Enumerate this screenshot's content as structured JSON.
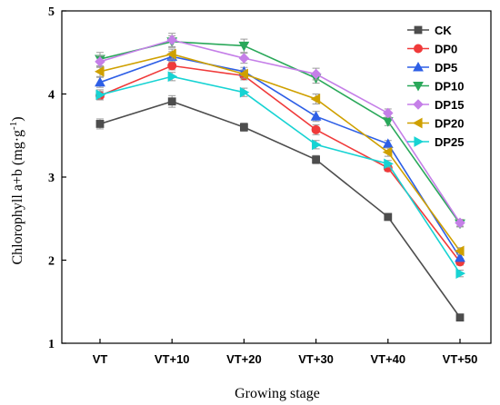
{
  "chart_data": {
    "type": "line",
    "xlabel": "Growing stage",
    "ylabel_main": "Chlorophyll a+b (mg·g",
    "ylabel_sup": "-1",
    "ylabel_close": ")",
    "ylim": [
      1,
      5
    ],
    "yticks": [
      "1",
      "2",
      "3",
      "4",
      "5"
    ],
    "categories": [
      "VT",
      "VT+10",
      "VT+20",
      "VT+30",
      "VT+40",
      "VT+50"
    ],
    "grid": false,
    "legend_position": "top-right",
    "series": [
      {
        "name": "CK",
        "color": "#4d4d4d",
        "marker": "square",
        "values": [
          3.64,
          3.91,
          3.6,
          3.21,
          2.52,
          1.31
        ],
        "errors": [
          0.06,
          0.07,
          0.05,
          0.05,
          0.03,
          0.03
        ]
      },
      {
        "name": "DP0",
        "color": "#f03a3a",
        "marker": "circle",
        "values": [
          3.98,
          4.34,
          4.22,
          3.57,
          3.11,
          1.98
        ],
        "errors": [
          0.05,
          0.05,
          0.05,
          0.06,
          0.04,
          0.04
        ]
      },
      {
        "name": "DP5",
        "color": "#2e5fe6",
        "marker": "triangle-up",
        "values": [
          4.14,
          4.45,
          4.27,
          3.73,
          3.4,
          2.03
        ],
        "errors": [
          0.06,
          0.06,
          0.05,
          0.06,
          0.04,
          0.04
        ]
      },
      {
        "name": "DP10",
        "color": "#2aa85a",
        "marker": "triangle-down",
        "values": [
          4.42,
          4.63,
          4.58,
          4.19,
          3.67,
          2.44
        ],
        "errors": [
          0.08,
          0.07,
          0.08,
          0.06,
          0.05,
          0.04
        ]
      },
      {
        "name": "DP15",
        "color": "#c57fe8",
        "marker": "diamond",
        "values": [
          4.39,
          4.65,
          4.43,
          4.24,
          3.77,
          2.45
        ],
        "errors": [
          0.07,
          0.08,
          0.06,
          0.07,
          0.05,
          0.04
        ]
      },
      {
        "name": "DP20",
        "color": "#cfa000",
        "marker": "triangle-left",
        "values": [
          4.27,
          4.48,
          4.24,
          3.94,
          3.3,
          2.11
        ],
        "errors": [
          0.06,
          0.06,
          0.05,
          0.06,
          0.05,
          0.04
        ]
      },
      {
        "name": "DP25",
        "color": "#17d3d3",
        "marker": "triangle-right",
        "values": [
          3.99,
          4.21,
          4.02,
          3.39,
          3.16,
          1.84
        ],
        "errors": [
          0.06,
          0.05,
          0.05,
          0.05,
          0.04,
          0.04
        ]
      }
    ]
  }
}
